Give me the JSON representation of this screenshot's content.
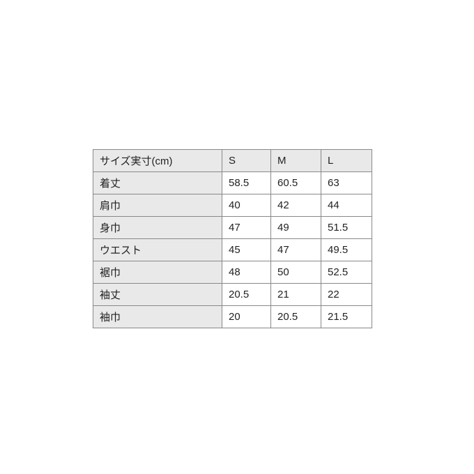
{
  "page": {
    "background_color": "#ffffff",
    "text_color": "#222222",
    "cell_gray_color": "#e9e9e9",
    "border_color": "#888888"
  },
  "size_chart": {
    "columns": [
      "サイズ実寸(cm)",
      "S",
      "M",
      "L"
    ],
    "rows": [
      {
        "label": "着丈",
        "values": [
          "58.5",
          "60.5",
          "63"
        ]
      },
      {
        "label": "肩巾",
        "values": [
          "40",
          "42",
          "44"
        ]
      },
      {
        "label": "身巾",
        "values": [
          "47",
          "49",
          "51.5"
        ]
      },
      {
        "label": "ウエスト",
        "values": [
          "45",
          "47",
          "49.5"
        ]
      },
      {
        "label": "裾巾",
        "values": [
          "48",
          "50",
          "52.5"
        ]
      },
      {
        "label": "袖丈",
        "values": [
          "20.5",
          "21",
          "22"
        ]
      },
      {
        "label": "袖巾",
        "values": [
          "20",
          "20.5",
          "21.5"
        ]
      }
    ]
  }
}
